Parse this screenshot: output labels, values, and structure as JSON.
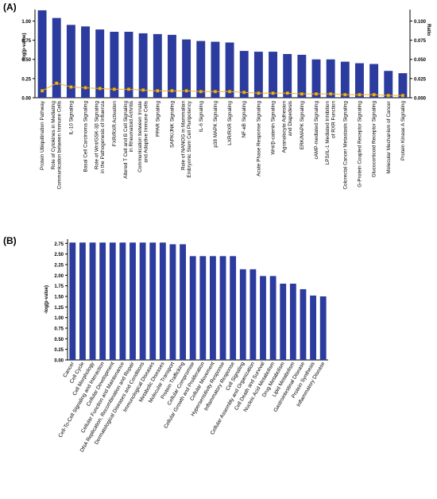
{
  "panels": {
    "a_label": "(A)",
    "b_label": "(B)"
  },
  "chart_data": [
    {
      "type": "bar",
      "title": "",
      "ylabel": "-log(p-value)",
      "y2label": "Ratio",
      "ylim": [
        0,
        1.15
      ],
      "y2lim": [
        0,
        0.115
      ],
      "yticks": [
        "0.00",
        "0.25",
        "0.50",
        "0.75",
        "1.00"
      ],
      "yticks_values": [
        0,
        0.25,
        0.5,
        0.75,
        1.0
      ],
      "y2ticks": [
        "0.000",
        "0.025",
        "0.050",
        "0.075",
        "0.100"
      ],
      "y2ticks_values": [
        0,
        0.025,
        0.05,
        0.075,
        0.1
      ],
      "bar_color": "#2b3b9e",
      "line_color": "#f2b21b",
      "categories": [
        "Protein Ubiquitination Pathway",
        "Role of Cytokines in Mediating Communication between Immune Cells",
        "IL-10 Signaling",
        "Basal Cell Carcinoma Signaling",
        "Role of Wnt/GSK-3β Signaling in the Pathogenesis of Influenza",
        "FXR/RXR Activation",
        "Altered T Cell and B Cell Signaling in Rheumatoid Arthritis",
        "Communication between Innate and Adaptive Immune Cells",
        "PPAR Signaling",
        "SAPK/JNK Signaling",
        "Role of NANOG in Mammalian Embryonic Stem Cell Pluripotency",
        "IL-6 Signaling",
        "p38 MAPK Signaling",
        "LXR/RXR Signaling",
        "NF-κB Signaling",
        "Acute Phase Response Signaling",
        "Wnt/β-catenin Signaling",
        "Agranulocyte Adhesion and Diapedesis",
        "ERK/MAPK Signaling",
        "cAMP-mediated Signaling",
        "LPS/IL-1 Mediated Inhibition of RXR Function",
        "Colorectal Cancer Metastasis Signaling",
        "G-Protein Coupled Receptor Signaling",
        "Glucocorticoid Receptor Signaling",
        "Molecular Mechanism of Cancer",
        "Protein Kinase A Signaling"
      ],
      "category_lines": [
        [
          "Protein Ubiquitination Pathway"
        ],
        [
          "Role of Cytokines in Mediating",
          "Communication between Immune Cells"
        ],
        [
          "IL-10 Signaling"
        ],
        [
          "Basal Cell Carcinoma Signaling"
        ],
        [
          "Role of Wnt/GSK-3β Signaling",
          "in the Pathogenesis of Influenza"
        ],
        [
          "FXR/RXR Activation"
        ],
        [
          "Altered T Cell and B Cell Signaling",
          "in Rheumatoid Arthritis"
        ],
        [
          "Communication between Innate",
          "and Adaptive Immune Cells"
        ],
        [
          "PPAR Signaling"
        ],
        [
          "SAPK/JNK Signaling"
        ],
        [
          "Role of NANOG in Mammalian",
          "Embryonic Stem Cell Pluripotency"
        ],
        [
          "IL-6 Signaling"
        ],
        [
          "p38 MAPK Signaling"
        ],
        [
          "LXR/RXR Signaling"
        ],
        [
          "NF-κB Signaling"
        ],
        [
          "Acute Phase Response Signaling"
        ],
        [
          "Wnt/β-catenin Signaling"
        ],
        [
          "Agranulocyte Adhesion",
          "and Diapedesis"
        ],
        [
          "ERK/MAPK Signaling"
        ],
        [
          "cAMP-mediated Signaling"
        ],
        [
          "LPS/IL-1 Mediated Inhibition",
          "of RXR Function"
        ],
        [
          "Colorectal Cancer Metastasis Signaling"
        ],
        [
          "G-Protein Coupled Receptor Signaling"
        ],
        [
          "Glucocorticoid Receptor Signaling"
        ],
        [
          "Molecular Mechanism of Cancer"
        ],
        [
          "Protein Kinase A Signaling"
        ]
      ],
      "values": [
        1.14,
        1.04,
        0.95,
        0.93,
        0.89,
        0.86,
        0.86,
        0.84,
        0.83,
        0.82,
        0.76,
        0.74,
        0.73,
        0.72,
        0.61,
        0.6,
        0.6,
        0.57,
        0.56,
        0.5,
        0.5,
        0.47,
        0.45,
        0.44,
        0.35,
        0.32
      ],
      "ratio": [
        0.009,
        0.019,
        0.014,
        0.013,
        0.012,
        0.011,
        0.011,
        0.01,
        0.009,
        0.009,
        0.009,
        0.008,
        0.008,
        0.008,
        0.007,
        0.006,
        0.006,
        0.006,
        0.005,
        0.005,
        0.005,
        0.004,
        0.004,
        0.004,
        0.003,
        0.003
      ]
    },
    {
      "type": "bar",
      "title": "",
      "ylabel": "-log(p-value)",
      "ylim": [
        0,
        2.85
      ],
      "yticks": [
        "0.00",
        "0.25",
        "0.50",
        "0.75",
        "1.00",
        "1.25",
        "1.50",
        "1.75",
        "2.00",
        "2.25",
        "2.50",
        "2.75"
      ],
      "yticks_values": [
        0,
        0.25,
        0.5,
        0.75,
        1.0,
        1.25,
        1.5,
        1.75,
        2.0,
        2.25,
        2.5,
        2.75
      ],
      "bar_color": "#2b3b9e",
      "categories": [
        "Cancer",
        "Cell Cycle",
        "Cell Morphology",
        "Cell-To-Cell Signaling and Interaction",
        "Cellular Development",
        "Cellular Function and Maintenance",
        "DNA Replication, Recombination and Repair",
        "Dermatological Diseases and Conditions",
        "Immunological Diseases",
        "Metabolic Diseases",
        "Molecular Transport",
        "Protein Trafficking",
        "Cellular Compromise",
        "Cellular Growth and Proliferation",
        "Cellular Movement",
        "Hypersensitivity Response",
        "Inflammatory Response",
        "Cell Signaling",
        "Cellular Assembly and Organization",
        "Cell Death and Survival",
        "Nucleic Acid Metabolism",
        "Drug Metabolism",
        "Lipid Metabolism",
        "Gastrointestinal Disease",
        "Protein Synthesis",
        "Inflammatory Disease"
      ],
      "values": [
        2.77,
        2.77,
        2.77,
        2.77,
        2.77,
        2.77,
        2.77,
        2.77,
        2.77,
        2.77,
        2.73,
        2.73,
        2.45,
        2.45,
        2.45,
        2.45,
        2.45,
        2.14,
        2.14,
        1.98,
        1.98,
        1.8,
        1.8,
        1.67,
        1.52,
        1.5
      ]
    }
  ]
}
